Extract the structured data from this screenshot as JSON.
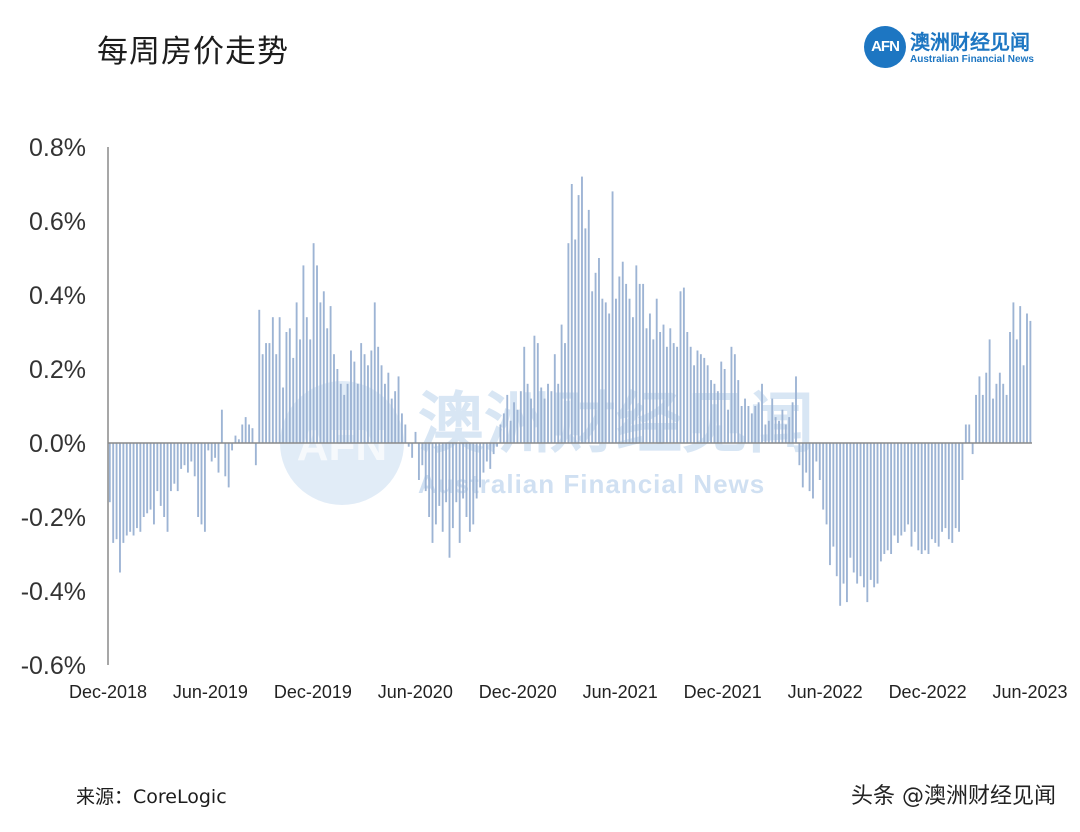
{
  "header": {
    "title": "每周房价走势",
    "logo_mark": "AFN",
    "logo_cn": "澳洲财经见闻",
    "logo_en": "Australian Financial News"
  },
  "watermark": {
    "mark": "AFN",
    "cn": "澳洲财经见闻",
    "en": "Australian Financial News"
  },
  "footer": {
    "source": "来源：CoreLogic",
    "tag": "头条 @澳洲财经见闻"
  },
  "colors": {
    "bar": "#9db4d4",
    "axis": "#8a8a8a",
    "brand": "#1d76c2"
  },
  "chart_data": {
    "type": "bar",
    "title": "每周房价走势",
    "xlabel": "",
    "ylabel": "",
    "ylim": [
      -0.006,
      0.008
    ],
    "y_format": "percent",
    "y_ticks": [
      "0.8%",
      "0.6%",
      "0.4%",
      "0.2%",
      "0.0%",
      "-0.2%",
      "-0.4%",
      "-0.6%"
    ],
    "x_ticks": [
      "Dec-2018",
      "Jun-2019",
      "Dec-2019",
      "Jun-2020",
      "Dec-2020",
      "Jun-2021",
      "Dec-2021",
      "Jun-2022",
      "Dec-2022",
      "Jun-2023"
    ],
    "grid": false,
    "values": [
      -0.0016,
      -0.0027,
      -0.0026,
      -0.0035,
      -0.0027,
      -0.0025,
      -0.0024,
      -0.0025,
      -0.0023,
      -0.0024,
      -0.002,
      -0.0019,
      -0.0018,
      -0.0022,
      -0.0013,
      -0.0017,
      -0.002,
      -0.0024,
      -0.0013,
      -0.0011,
      -0.0013,
      -0.0007,
      -0.0006,
      -0.0008,
      -0.0005,
      -0.0009,
      -0.002,
      -0.0022,
      -0.0024,
      -0.0002,
      -0.0005,
      -0.0004,
      -0.0008,
      0.0009,
      -0.0009,
      -0.0012,
      -0.0002,
      0.0002,
      0.0001,
      0.0005,
      0.0007,
      0.0005,
      0.0004,
      -0.0006,
      0.0036,
      0.0024,
      0.0027,
      0.0027,
      0.0034,
      0.0024,
      0.0034,
      0.0015,
      0.003,
      0.0031,
      0.0023,
      0.0038,
      0.0028,
      0.0048,
      0.0034,
      0.0028,
      0.0054,
      0.0048,
      0.0038,
      0.0041,
      0.0031,
      0.0037,
      0.0024,
      0.002,
      0.0016,
      0.0013,
      0.0016,
      0.0025,
      0.0022,
      0.0016,
      0.0027,
      0.0024,
      0.0021,
      0.0025,
      0.0038,
      0.0026,
      0.0021,
      0.0016,
      0.0019,
      0.0012,
      0.0014,
      0.0018,
      0.0008,
      0.0005,
      -0.0001,
      -0.0004,
      0.0003,
      -0.001,
      -0.0006,
      -0.0013,
      -0.002,
      -0.0027,
      -0.0022,
      -0.0017,
      -0.0024,
      -0.0016,
      -0.0031,
      -0.0023,
      -0.0016,
      -0.0027,
      -0.0015,
      -0.002,
      -0.0024,
      -0.0022,
      -0.0015,
      -0.0012,
      -0.0008,
      -0.0005,
      -0.0007,
      -0.0003,
      -0.0001,
      0.0005,
      0.0008,
      0.0013,
      0.0006,
      0.0011,
      0.0009,
      0.0014,
      0.0026,
      0.0016,
      0.0012,
      0.0029,
      0.0027,
      0.0015,
      0.0012,
      0.0016,
      0.0014,
      0.0024,
      0.0016,
      0.0032,
      0.0027,
      0.0054,
      0.007,
      0.0055,
      0.0067,
      0.0072,
      0.0058,
      0.0063,
      0.0041,
      0.0046,
      0.005,
      0.0039,
      0.0038,
      0.0035,
      0.0068,
      0.0039,
      0.0045,
      0.0049,
      0.0043,
      0.0039,
      0.0034,
      0.0048,
      0.0043,
      0.0043,
      0.0031,
      0.0035,
      0.0028,
      0.0039,
      0.003,
      0.0032,
      0.0026,
      0.0031,
      0.0027,
      0.0026,
      0.0041,
      0.0042,
      0.003,
      0.0026,
      0.0021,
      0.0025,
      0.0024,
      0.0023,
      0.0021,
      0.0017,
      0.0016,
      0.0014,
      0.0022,
      0.002,
      0.0009,
      0.0026,
      0.0024,
      0.0017,
      0.001,
      0.0012,
      0.001,
      0.0008,
      0.001,
      0.0011,
      0.0016,
      0.0005,
      0.0006,
      0.0012,
      0.0007,
      0.0006,
      0.0009,
      0.0005,
      0.0007,
      0.0011,
      0.0018,
      -0.0006,
      -0.0012,
      -0.0008,
      -0.0013,
      -0.0015,
      -0.0005,
      -0.001,
      -0.0018,
      -0.0022,
      -0.0033,
      -0.0028,
      -0.0036,
      -0.0044,
      -0.0038,
      -0.0043,
      -0.0031,
      -0.0035,
      -0.0038,
      -0.0036,
      -0.0039,
      -0.0043,
      -0.0037,
      -0.0039,
      -0.0038,
      -0.0032,
      -0.003,
      -0.0029,
      -0.003,
      -0.0025,
      -0.0027,
      -0.0025,
      -0.0024,
      -0.0022,
      -0.0028,
      -0.0024,
      -0.0029,
      -0.003,
      -0.0029,
      -0.003,
      -0.0026,
      -0.0027,
      -0.0028,
      -0.0024,
      -0.0023,
      -0.0026,
      -0.0027,
      -0.0023,
      -0.0024,
      -0.001,
      0.0005,
      0.0005,
      -0.0003,
      0.0013,
      0.0018,
      0.0013,
      0.0019,
      0.0028,
      0.0012,
      0.0016,
      0.0019,
      0.0016,
      0.0013,
      0.003,
      0.0038,
      0.0028,
      0.0037,
      0.0021,
      0.0035,
      0.0033
    ]
  }
}
